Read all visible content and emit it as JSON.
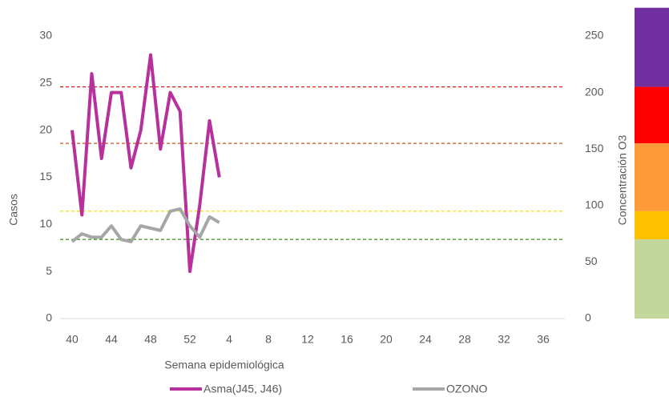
{
  "chart_data": {
    "type": "line",
    "x_label": "Semana epidemiológica",
    "y_label": "Casos",
    "y2_label": "Concentración O3",
    "categories": [
      "40",
      null,
      null,
      null,
      "44",
      null,
      null,
      null,
      "48",
      null,
      null,
      null,
      "52",
      null,
      null,
      null,
      "4",
      null,
      null,
      null,
      "8",
      null,
      null,
      null,
      "12",
      null,
      null,
      null,
      "16",
      null,
      null,
      null,
      "20",
      null,
      null,
      null,
      "24",
      null,
      null,
      null,
      "28",
      null,
      null,
      null,
      "32",
      null,
      null,
      null,
      "36",
      null,
      null,
      null
    ],
    "series": [
      {
        "name": "Asma(J45, J46)",
        "color": "#b8309b",
        "axis": "y",
        "values": [
          20,
          11,
          26,
          17,
          24,
          24,
          16,
          20,
          28,
          18,
          24,
          22,
          5,
          12,
          21,
          15,
          null,
          null,
          null,
          null,
          null,
          null,
          null,
          null,
          null,
          null,
          null,
          null,
          null,
          null,
          null,
          null,
          null,
          null,
          null,
          null,
          null,
          null,
          null,
          null,
          null,
          null,
          null,
          null,
          null,
          null,
          null,
          null,
          null,
          null,
          null,
          null
        ]
      },
      {
        "name": "OZONO",
        "color": "#a6a6a6",
        "axis": "y2",
        "values": [
          68,
          75,
          72,
          72,
          82,
          70,
          68,
          82,
          80,
          78,
          95,
          97,
          82,
          72,
          90,
          85,
          null,
          null,
          null,
          null,
          null,
          null,
          null,
          null,
          null,
          null,
          null,
          null,
          null,
          null,
          null,
          null,
          null,
          null,
          null,
          null,
          null,
          null,
          null,
          null,
          null,
          null,
          null,
          null,
          null,
          null,
          null,
          null,
          null,
          null,
          null,
          null
        ]
      }
    ],
    "ylim": [
      0,
      30
    ],
    "yticks": [
      0,
      5,
      10,
      15,
      20,
      25,
      30
    ],
    "y2lim": [
      0,
      250
    ],
    "y2ticks": [
      0,
      50,
      100,
      150,
      200,
      250
    ],
    "reference_lines": [
      {
        "value": 205,
        "color": "#e00000"
      },
      {
        "value": 155,
        "color": "#c0561c"
      },
      {
        "value": 95,
        "color": "#f0e000"
      },
      {
        "value": 70,
        "color": "#3a8a1a"
      }
    ],
    "bands": [
      {
        "from": 205,
        "to": 275,
        "color": "#7030a0"
      },
      {
        "from": 155,
        "to": 205,
        "color": "#ff0000"
      },
      {
        "from": 95,
        "to": 155,
        "color": "#ff9a38"
      },
      {
        "from": 70,
        "to": 95,
        "color": "#ffc000"
      },
      {
        "from": 0,
        "to": 70,
        "color": "#c3d69b"
      }
    ]
  }
}
